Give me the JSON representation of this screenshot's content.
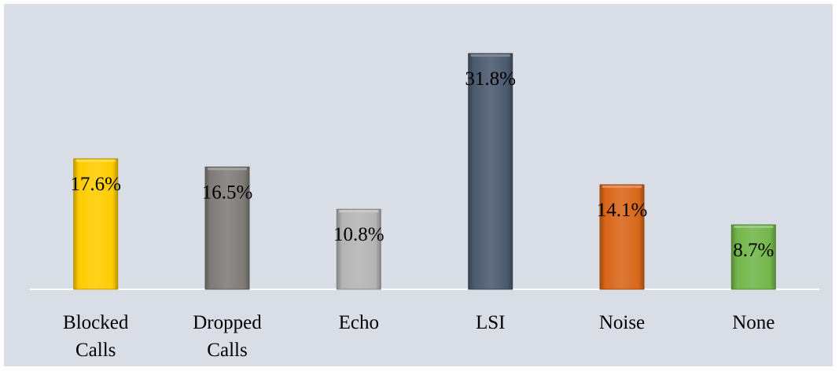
{
  "chart_data": {
    "type": "bar",
    "categories": [
      "Blocked Calls",
      "Dropped Calls",
      "Echo",
      "LSI",
      "Noise",
      "None"
    ],
    "category_lines": [
      [
        "Blocked",
        "Calls"
      ],
      [
        "Dropped",
        "Calls"
      ],
      [
        "Echo"
      ],
      [
        "LSI"
      ],
      [
        "Noise"
      ],
      [
        "None"
      ]
    ],
    "values": [
      17.6,
      16.5,
      10.8,
      31.8,
      14.1,
      8.7
    ],
    "value_labels": [
      "17.6%",
      "16.5%",
      "10.8%",
      "31.8%",
      "14.1%",
      "8.7%"
    ],
    "unit": "%",
    "ylim": [
      0,
      33.3
    ],
    "grid": false,
    "legend": "none",
    "colors": [
      "#ffcc00",
      "#7f7b78",
      "#b4b4b4",
      "#4a5a6d",
      "#d8661a",
      "#72b64a"
    ],
    "background": "#d8dde6",
    "axis_color": "#ffffff"
  }
}
